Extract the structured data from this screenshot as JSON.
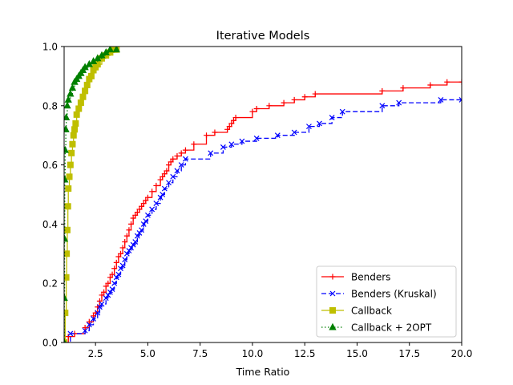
{
  "chart_data": {
    "type": "line",
    "title": "Iterative Models",
    "xlabel": "Time Ratio",
    "ylabel": "",
    "xlim": [
      1,
      20
    ],
    "ylim": [
      0,
      1
    ],
    "xticks": [
      2.5,
      5.0,
      7.5,
      10.0,
      12.5,
      15.0,
      17.5,
      20.0
    ],
    "xtick_labels": [
      "2.5",
      "5.0",
      "7.5",
      "10.0",
      "12.5",
      "15.0",
      "17.5",
      "20.0"
    ],
    "yticks": [
      0.0,
      0.2,
      0.4,
      0.6,
      0.8,
      1.0
    ],
    "ytick_labels": [
      "0.0",
      "0.2",
      "0.4",
      "0.6",
      "0.8",
      "1.0"
    ],
    "grid": false,
    "legend_position": "bottom-right",
    "series": [
      {
        "name": "Benders",
        "color": "#ff0000",
        "linestyle": "solid",
        "marker": "plus",
        "x": [
          1.0,
          1.2,
          1.5,
          2.0,
          2.2,
          2.4,
          2.5,
          2.6,
          2.7,
          2.8,
          2.9,
          3.0,
          3.1,
          3.2,
          3.3,
          3.4,
          3.5,
          3.6,
          3.7,
          3.8,
          3.9,
          4.0,
          4.1,
          4.2,
          4.3,
          4.4,
          4.5,
          4.6,
          4.7,
          4.8,
          4.9,
          5.0,
          5.2,
          5.4,
          5.6,
          5.7,
          5.8,
          5.9,
          6.0,
          6.1,
          6.2,
          6.4,
          6.6,
          6.8,
          7.2,
          7.8,
          8.2,
          8.8,
          8.9,
          9.0,
          9.1,
          9.2,
          10.0,
          10.2,
          10.8,
          11.5,
          12.0,
          12.5,
          13.0,
          16.2,
          17.2,
          18.5,
          19.3,
          20.0
        ],
        "y": [
          0.0,
          0.02,
          0.03,
          0.05,
          0.07,
          0.09,
          0.1,
          0.12,
          0.14,
          0.16,
          0.17,
          0.19,
          0.2,
          0.22,
          0.23,
          0.25,
          0.27,
          0.29,
          0.3,
          0.32,
          0.34,
          0.36,
          0.38,
          0.4,
          0.42,
          0.43,
          0.44,
          0.45,
          0.46,
          0.47,
          0.48,
          0.49,
          0.51,
          0.53,
          0.55,
          0.56,
          0.57,
          0.58,
          0.6,
          0.61,
          0.62,
          0.63,
          0.64,
          0.65,
          0.67,
          0.7,
          0.71,
          0.72,
          0.73,
          0.74,
          0.75,
          0.76,
          0.78,
          0.79,
          0.8,
          0.81,
          0.82,
          0.83,
          0.84,
          0.85,
          0.86,
          0.87,
          0.88,
          0.88
        ]
      },
      {
        "name": "Benders (Kruskal)",
        "color": "#0000ff",
        "linestyle": "dashed",
        "marker": "x",
        "x": [
          1.0,
          1.3,
          2.0,
          2.2,
          2.4,
          2.6,
          2.7,
          2.8,
          3.0,
          3.1,
          3.2,
          3.3,
          3.4,
          3.5,
          3.6,
          3.7,
          3.8,
          3.9,
          4.0,
          4.1,
          4.2,
          4.3,
          4.4,
          4.5,
          4.6,
          4.7,
          4.8,
          4.9,
          5.0,
          5.2,
          5.4,
          5.6,
          5.7,
          5.8,
          6.0,
          6.2,
          6.4,
          6.6,
          6.8,
          8.0,
          8.6,
          9.0,
          9.5,
          10.2,
          11.2,
          12.0,
          12.7,
          13.2,
          13.8,
          14.3,
          16.2,
          17.0,
          19.0,
          20.0
        ],
        "y": [
          0.0,
          0.03,
          0.04,
          0.06,
          0.08,
          0.1,
          0.12,
          0.13,
          0.15,
          0.16,
          0.17,
          0.18,
          0.2,
          0.22,
          0.23,
          0.25,
          0.26,
          0.28,
          0.3,
          0.31,
          0.32,
          0.33,
          0.34,
          0.36,
          0.37,
          0.38,
          0.4,
          0.41,
          0.43,
          0.45,
          0.47,
          0.49,
          0.5,
          0.52,
          0.54,
          0.56,
          0.58,
          0.6,
          0.62,
          0.64,
          0.66,
          0.67,
          0.68,
          0.69,
          0.7,
          0.71,
          0.73,
          0.74,
          0.76,
          0.78,
          0.8,
          0.81,
          0.82,
          0.82
        ]
      },
      {
        "name": "Callback",
        "color": "#bfbf00",
        "linestyle": "solid",
        "marker": "square",
        "x": [
          1.0,
          1.05,
          1.1,
          1.12,
          1.15,
          1.18,
          1.2,
          1.25,
          1.3,
          1.35,
          1.4,
          1.45,
          1.5,
          1.55,
          1.6,
          1.7,
          1.8,
          1.9,
          2.0,
          2.1,
          2.2,
          2.3,
          2.4,
          2.5,
          2.6,
          2.8,
          3.0,
          3.2,
          3.4,
          3.5
        ],
        "y": [
          0.0,
          0.1,
          0.22,
          0.3,
          0.38,
          0.46,
          0.52,
          0.56,
          0.6,
          0.64,
          0.67,
          0.7,
          0.72,
          0.74,
          0.77,
          0.79,
          0.81,
          0.83,
          0.85,
          0.87,
          0.89,
          0.9,
          0.92,
          0.93,
          0.94,
          0.96,
          0.97,
          0.98,
          0.99,
          0.99
        ]
      },
      {
        "name": "Callback + 2OPT",
        "color": "#008000",
        "linestyle": "dotted",
        "marker": "triangle",
        "x": [
          1.0,
          1.01,
          1.02,
          1.03,
          1.05,
          1.08,
          1.1,
          1.15,
          1.2,
          1.3,
          1.4,
          1.5,
          1.6,
          1.7,
          1.8,
          1.9,
          2.0,
          2.2,
          2.4,
          2.6,
          2.8,
          3.0,
          3.2,
          3.5
        ],
        "y": [
          0.0,
          0.15,
          0.35,
          0.55,
          0.65,
          0.72,
          0.76,
          0.8,
          0.82,
          0.84,
          0.86,
          0.88,
          0.89,
          0.9,
          0.91,
          0.92,
          0.93,
          0.94,
          0.95,
          0.96,
          0.97,
          0.98,
          0.99,
          0.99
        ]
      }
    ]
  }
}
